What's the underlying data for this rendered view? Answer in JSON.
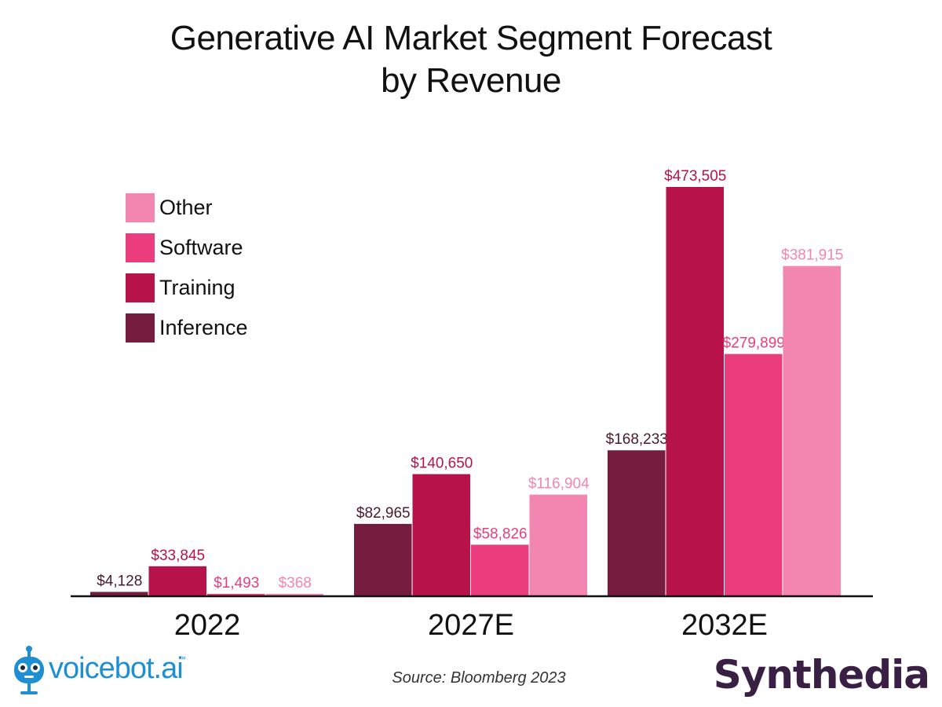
{
  "title_lines": [
    "Generative AI Market Segment Forecast",
    "by Revenue"
  ],
  "source": "Source: Bloomberg 2023",
  "logos": {
    "left_text": "voicebot.ai",
    "left_tm": "™",
    "right_text": "Synthedia"
  },
  "colors": {
    "Inference": "#761c3e",
    "Training": "#b7124a",
    "Software": "#eb3d7d",
    "Other": "#f386b0",
    "baseline": "#111111",
    "voicebot": "#1f8fd3",
    "synthedia": "#3a1f44"
  },
  "legend": [
    {
      "label": "Other",
      "color": "#f386b0"
    },
    {
      "label": "Software",
      "color": "#eb3d7d"
    },
    {
      "label": "Training",
      "color": "#b7124a"
    },
    {
      "label": "Inference",
      "color": "#761c3e"
    }
  ],
  "chart_data": {
    "type": "bar",
    "categories": [
      "2022",
      "2027E",
      "2032E"
    ],
    "series": [
      {
        "name": "Inference",
        "values": [
          4128,
          82965,
          168233
        ],
        "labels": [
          "$4,128",
          "$82,965",
          "$168,233"
        ],
        "label_color": "#4a1a2c"
      },
      {
        "name": "Training",
        "values": [
          33845,
          140650,
          473505
        ],
        "labels": [
          "$33,845",
          "$140,650",
          "$473,505"
        ],
        "label_color": "#b7124a"
      },
      {
        "name": "Software",
        "values": [
          1493,
          58826,
          279899
        ],
        "labels": [
          "$1,493",
          "$58,826",
          "$279,899"
        ],
        "label_color": "#eb3d7d"
      },
      {
        "name": "Other",
        "values": [
          368,
          116904,
          381915
        ],
        "labels": [
          "$368",
          "$116,904",
          "$381,915"
        ],
        "label_color": "#f386b0"
      }
    ],
    "ylim": [
      0,
      473505
    ],
    "grid": false,
    "legend_position": "top-left"
  }
}
